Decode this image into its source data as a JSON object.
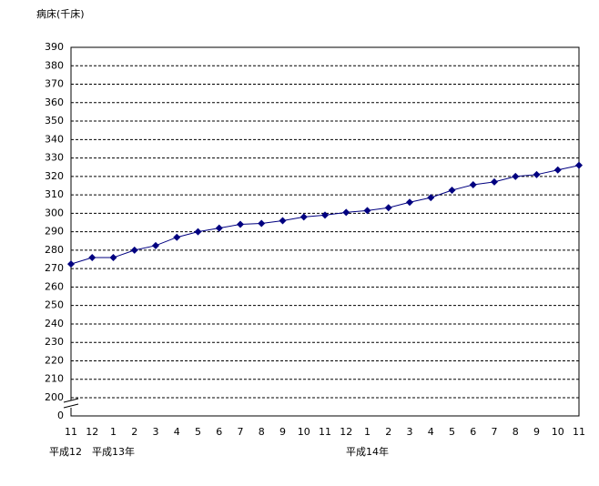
{
  "chart_data": {
    "type": "line",
    "y_axis_label": "病床(千床)",
    "categories": [
      "11",
      "12",
      "1",
      "2",
      "3",
      "4",
      "5",
      "6",
      "7",
      "8",
      "9",
      "10",
      "11",
      "12",
      "1",
      "2",
      "3",
      "4",
      "5",
      "6",
      "7",
      "8",
      "9",
      "10",
      "11"
    ],
    "era_labels": [
      {
        "label": "平成12",
        "index": 0
      },
      {
        "label": "平成13年",
        "index": 2
      },
      {
        "label": "平成14年",
        "index": 14
      }
    ],
    "series": [
      {
        "name": "病床",
        "color": "#000080",
        "values": [
          272.5,
          276,
          276,
          280,
          282.5,
          287,
          290,
          292,
          294,
          294.5,
          296,
          298,
          299,
          300.5,
          301.5,
          303,
          306,
          308.5,
          312.5,
          315.5,
          317,
          320,
          321,
          323.5,
          326
        ]
      }
    ],
    "ylim": [
      0,
      390
    ],
    "y_break": [
      0,
      200
    ],
    "yticks": [
      0,
      200,
      210,
      220,
      230,
      240,
      250,
      260,
      270,
      280,
      290,
      300,
      310,
      320,
      330,
      340,
      350,
      360,
      370,
      380,
      390
    ],
    "grid": true
  }
}
